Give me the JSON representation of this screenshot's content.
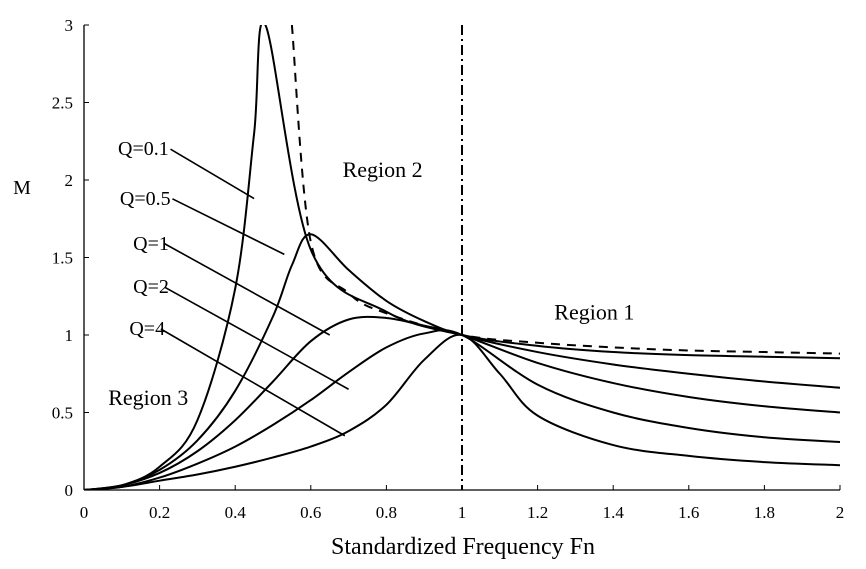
{
  "chart_data": {
    "type": "line",
    "title": "",
    "xlabel": "Standardized Frequency Fn",
    "ylabel": "M",
    "xlim": [
      0,
      2
    ],
    "ylim": [
      0,
      3
    ],
    "xticks": [
      "0",
      "0.2",
      "0.4",
      "0.6",
      "0.8",
      "1",
      "1.2",
      "1.4",
      "1.6",
      "1.8",
      "2"
    ],
    "yticks": [
      "0",
      "0.5",
      "1",
      "1.5",
      "2",
      "2.5",
      "3"
    ],
    "grid": false,
    "series": [
      {
        "name": "Q=0.1",
        "style": "solid",
        "q": 0.1,
        "x": [
          0.1,
          0.2,
          0.3,
          0.4,
          0.45,
          0.48,
          0.6,
          0.8,
          1.0,
          1.2,
          1.4,
          1.6,
          1.8,
          2.0
        ],
        "y": [
          0.03,
          0.15,
          0.45,
          1.3,
          2.3,
          3.0,
          1.55,
          1.15,
          1.0,
          0.93,
          0.89,
          0.87,
          0.86,
          0.85
        ]
      },
      {
        "name": "Q=0.5",
        "style": "solid",
        "q": 0.5,
        "x": [
          0.1,
          0.2,
          0.3,
          0.4,
          0.5,
          0.55,
          0.6,
          0.7,
          0.8,
          0.9,
          1.0,
          1.2,
          1.4,
          1.6,
          1.8,
          2.0
        ],
        "y": [
          0.03,
          0.13,
          0.32,
          0.64,
          1.12,
          1.45,
          1.65,
          1.42,
          1.22,
          1.09,
          1.0,
          0.89,
          0.81,
          0.75,
          0.7,
          0.66
        ]
      },
      {
        "name": "Q=1",
        "style": "solid",
        "q": 1,
        "x": [
          0.1,
          0.2,
          0.3,
          0.4,
          0.5,
          0.6,
          0.7,
          0.8,
          0.9,
          1.0,
          1.2,
          1.4,
          1.6,
          1.8,
          2.0
        ],
        "y": [
          0.03,
          0.11,
          0.25,
          0.45,
          0.7,
          0.96,
          1.1,
          1.11,
          1.06,
          1.0,
          0.82,
          0.69,
          0.6,
          0.54,
          0.5
        ]
      },
      {
        "name": "Q=2",
        "style": "solid",
        "q": 2,
        "x": [
          0.1,
          0.2,
          0.3,
          0.4,
          0.5,
          0.6,
          0.7,
          0.8,
          0.9,
          1.0,
          1.2,
          1.4,
          1.6,
          1.8,
          2.0
        ],
        "y": [
          0.02,
          0.08,
          0.17,
          0.28,
          0.42,
          0.58,
          0.76,
          0.92,
          1.01,
          1.0,
          0.68,
          0.5,
          0.4,
          0.34,
          0.31
        ]
      },
      {
        "name": "Q=4",
        "style": "solid",
        "q": 4,
        "x": [
          0.1,
          0.2,
          0.3,
          0.4,
          0.5,
          0.6,
          0.7,
          0.8,
          0.9,
          1.0,
          1.1,
          1.2,
          1.4,
          1.6,
          1.8,
          2.0
        ],
        "y": [
          0.02,
          0.06,
          0.1,
          0.15,
          0.21,
          0.28,
          0.38,
          0.55,
          0.84,
          1.0,
          0.75,
          0.48,
          0.29,
          0.22,
          0.18,
          0.16
        ]
      },
      {
        "name": "",
        "style": "dashed",
        "x": [
          0.55,
          0.6,
          0.7,
          0.8,
          1.0,
          1.2,
          1.4,
          1.6,
          1.8,
          2.0
        ],
        "y": [
          3.0,
          1.6,
          1.27,
          1.14,
          1.0,
          0.95,
          0.92,
          0.9,
          0.89,
          0.88
        ]
      }
    ],
    "annotations": [
      {
        "id": "region-1",
        "text": "Region 1",
        "x": 1.35,
        "y": 1.1
      },
      {
        "id": "region-2",
        "text": "Region 2",
        "x": 0.79,
        "y": 2.02
      },
      {
        "id": "region-3",
        "text": "Region 3",
        "x": 0.17,
        "y": 0.55
      }
    ],
    "q_labels": [
      {
        "text": "Q=0.1",
        "label_x": 0.09,
        "label_y": 2.16,
        "line_to": [
          0.45,
          1.88
        ]
      },
      {
        "text": "Q=0.5",
        "label_x": 0.095,
        "label_y": 1.84,
        "line_to": [
          0.53,
          1.52
        ]
      },
      {
        "text": "Q=1",
        "label_x": 0.13,
        "label_y": 1.55,
        "line_to": [
          0.65,
          1.0
        ]
      },
      {
        "text": "Q=2",
        "label_x": 0.13,
        "label_y": 1.27,
        "line_to": [
          0.7,
          0.65
        ]
      },
      {
        "text": "Q=4",
        "label_x": 0.12,
        "label_y": 1.0,
        "line_to": [
          0.69,
          0.35
        ]
      }
    ],
    "vertical_line": {
      "x": 1,
      "style": "dashdot"
    }
  }
}
